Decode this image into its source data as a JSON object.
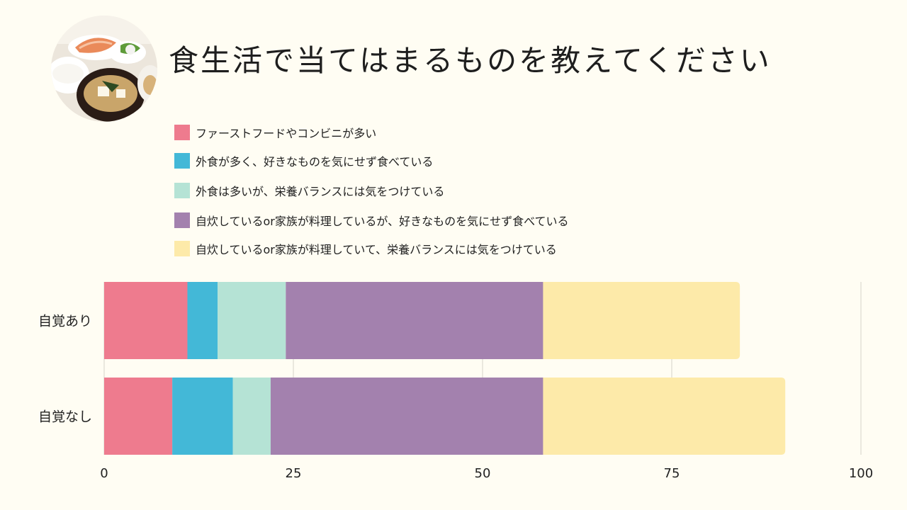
{
  "title": "食生活で当てはまるものを教えてください",
  "chart_data": {
    "type": "bar",
    "orientation": "horizontal",
    "stacked": true,
    "title": "食生活で当てはまるものを教えてください",
    "categories": [
      "自覚あり",
      "自覚なし"
    ],
    "series": [
      {
        "name": "ファーストフードやコンビニが多い",
        "color": "#ee7b8e",
        "values": [
          11,
          9
        ]
      },
      {
        "name": "外食が多く、好きなものを気にせず食べている",
        "color": "#43b8d7",
        "values": [
          4,
          8
        ]
      },
      {
        "name": "外食は多いが、栄養バランスには気をつけている",
        "color": "#b5e3d5",
        "values": [
          9,
          5
        ]
      },
      {
        "name": "自炊しているor家族が料理しているが、好きなものを気にせず食べている",
        "color": "#a381ae",
        "values": [
          34,
          36
        ]
      },
      {
        "name": "自炊しているor家族が料理していて、栄養バランスには気をつけている",
        "color": "#fdeaa9",
        "values": [
          26,
          32
        ]
      }
    ],
    "xlim": [
      0,
      100
    ],
    "xticks": [
      0,
      25,
      50,
      75,
      100
    ],
    "xtick_labels": [
      "0",
      "25",
      "50",
      "75",
      "100"
    ],
    "grid": true,
    "legend": "top"
  }
}
